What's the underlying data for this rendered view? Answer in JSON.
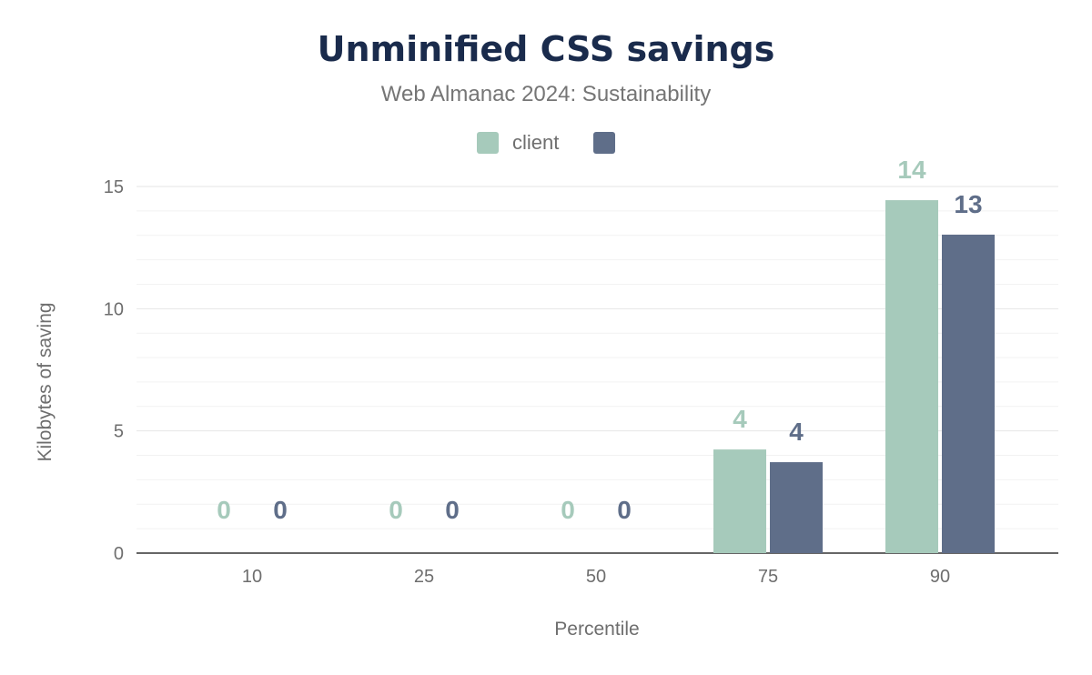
{
  "chart_data": {
    "type": "bar",
    "title": "Unminified CSS savings",
    "subtitle": "Web Almanac 2024: Sustainability",
    "xlabel": "Percentile",
    "ylabel": "Kilobytes of saving",
    "categories": [
      "10",
      "25",
      "50",
      "75",
      "90"
    ],
    "ylim": [
      0,
      15
    ],
    "yticks": [
      "0",
      "5",
      "10",
      "15"
    ],
    "grid": true,
    "legend": "top",
    "series": [
      {
        "name": "client",
        "color": "#a6cabb",
        "values": [
          0,
          0,
          0,
          4.24,
          14.44
        ],
        "labels": [
          "0",
          "0",
          "0",
          "4",
          "14"
        ]
      },
      {
        "name": "",
        "color": "#5f6e89",
        "values": [
          0,
          0,
          0,
          3.72,
          13.03
        ],
        "labels": [
          "0",
          "0",
          "0",
          "4",
          "13"
        ]
      }
    ]
  }
}
